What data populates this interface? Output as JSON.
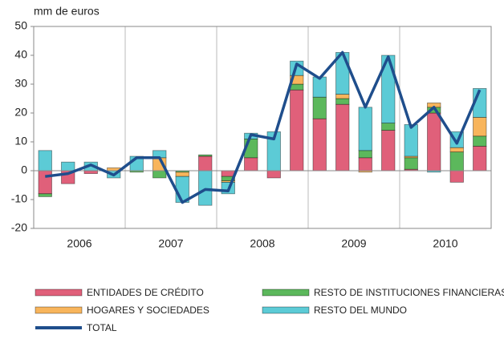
{
  "chart_data": {
    "type": "stacked_bar_line",
    "y_unit_label": "mm de euros",
    "categories": [
      null,
      null,
      null,
      null,
      null,
      null,
      null,
      null,
      null,
      null,
      null,
      null,
      null,
      null,
      null,
      null,
      null,
      null,
      null,
      null
    ],
    "year_groups": [
      "2006",
      "2007",
      "2008",
      "2009",
      "2010"
    ],
    "series": [
      {
        "name": "ENTIDADES DE CRÉDITO",
        "color": "#e0607a",
        "values": [
          -8,
          -4.5,
          -1,
          0,
          0,
          0,
          0,
          5,
          -2,
          4.5,
          -2.5,
          28,
          18,
          23,
          4.5,
          14,
          0.5,
          20,
          -4,
          8.5
        ]
      },
      {
        "name": "RESTO DE INSTITUCIONES FINANCIERAS",
        "color": "#5cb85c",
        "values": [
          -1,
          0,
          0,
          0,
          -0.5,
          -2.5,
          -0.5,
          0.5,
          -1.5,
          6.5,
          0,
          2,
          7.5,
          2,
          2.5,
          2.5,
          4,
          2,
          6.5,
          3.5
        ]
      },
      {
        "name": "HOGARES Y SOCIEDADES",
        "color": "#f8b55c",
        "values": [
          0,
          0,
          0,
          1,
          0,
          4.5,
          -1.5,
          0,
          -0.5,
          0,
          0,
          3,
          0,
          1.5,
          -0.5,
          0,
          0.5,
          1.5,
          1.5,
          6.5
        ]
      },
      {
        "name": "RESTO DEL MUNDO",
        "color": "#5ccbd6",
        "values": [
          7,
          3,
          3,
          -2.5,
          5,
          2.5,
          -9,
          -12,
          -4,
          2,
          13.5,
          5,
          7,
          14.5,
          15,
          23.5,
          11,
          -0.5,
          5.5,
          10
        ]
      },
      {
        "name": "TOTAL",
        "color": "#1f4e8c",
        "type": "line",
        "values": [
          -2,
          -1,
          2,
          -1.5,
          4.5,
          4.5,
          -11,
          -6.5,
          -7,
          12.5,
          11,
          37,
          32,
          41,
          22,
          39.5,
          15,
          22,
          9.5,
          28
        ]
      }
    ],
    "ylim": [
      -20,
      50
    ],
    "yticks": [
      -20,
      -10,
      0,
      10,
      20,
      30,
      40,
      50
    ],
    "grid": false
  }
}
